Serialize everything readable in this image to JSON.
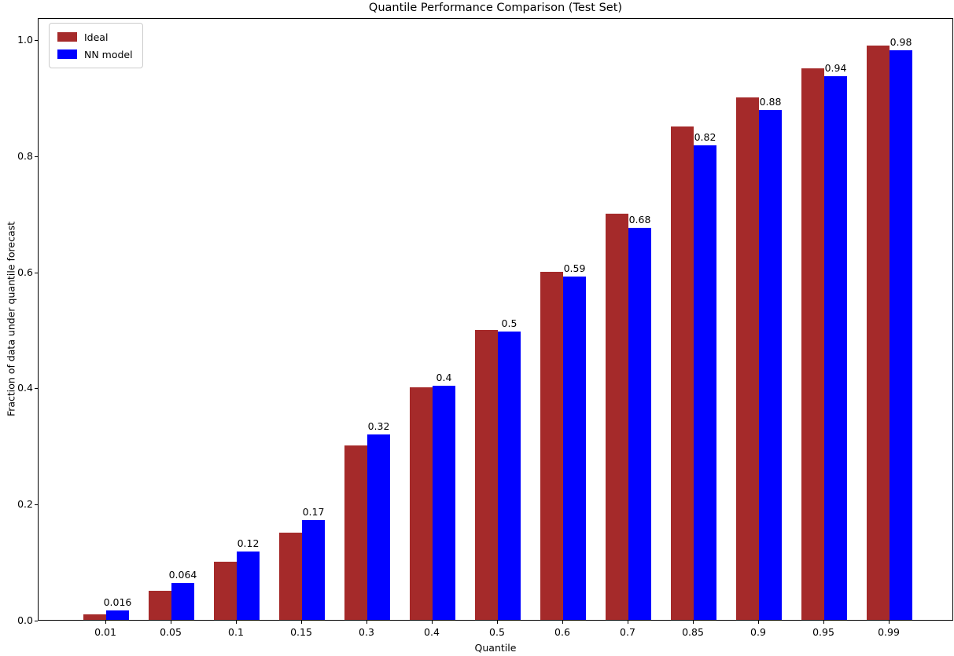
{
  "chart_data": {
    "type": "bar",
    "title": "Quantile Performance Comparison (Test Set)",
    "xlabel": "Quantile",
    "ylabel": "Fraction of data under quantile forecast",
    "categories": [
      "0.01",
      "0.05",
      "0.1",
      "0.15",
      "0.3",
      "0.4",
      "0.5",
      "0.6",
      "0.7",
      "0.85",
      "0.9",
      "0.95",
      "0.99"
    ],
    "series": [
      {
        "name": "Ideal",
        "color": "#a52a2a",
        "values": [
          0.01,
          0.05,
          0.1,
          0.15,
          0.3,
          0.4,
          0.5,
          0.6,
          0.7,
          0.85,
          0.9,
          0.95,
          0.99
        ]
      },
      {
        "name": "NN model",
        "color": "#0000ff",
        "values": [
          0.016,
          0.064,
          0.118,
          0.172,
          0.319,
          0.403,
          0.497,
          0.592,
          0.675,
          0.818,
          0.878,
          0.936,
          0.981
        ],
        "labels": [
          "0.016",
          "0.064",
          "0.12",
          "0.17",
          "0.32",
          "0.4",
          "0.5",
          "0.59",
          "0.68",
          "0.82",
          "0.88",
          "0.94",
          "0.98"
        ]
      }
    ],
    "yticks": [
      0.0,
      0.2,
      0.4,
      0.6,
      0.8,
      1.0
    ],
    "ytick_labels": [
      "0.0",
      "0.2",
      "0.4",
      "0.6",
      "0.8",
      "1.0"
    ],
    "ylim": [
      0,
      1.038
    ],
    "legend_position": "upper left",
    "grid": false,
    "background_color": "#ffffff",
    "text_color": "#000000"
  }
}
